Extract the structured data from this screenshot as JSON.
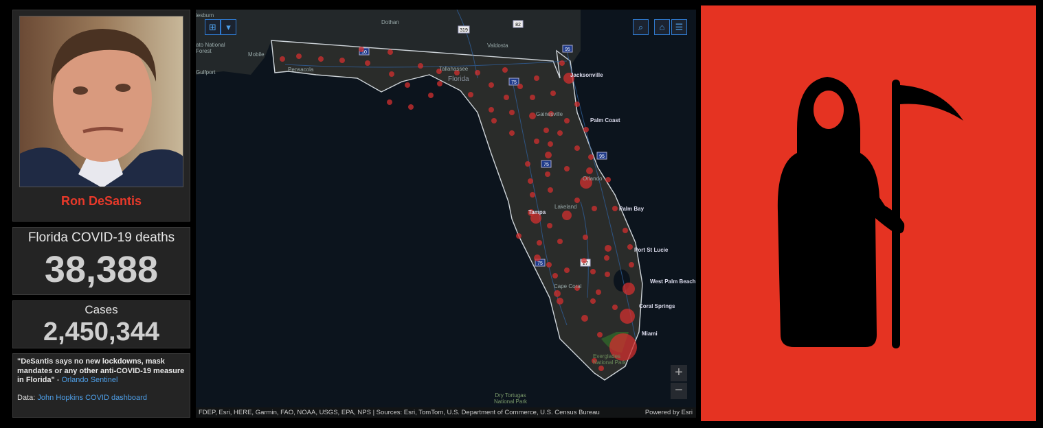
{
  "profile": {
    "name": "Ron DeSantis"
  },
  "deaths": {
    "label": "Florida COVID-19 deaths",
    "value": "38,388"
  },
  "cases": {
    "label": "Cases",
    "value": "2,450,344"
  },
  "info": {
    "quote": "\"DeSantis says no new lockdowns, mask mandates or any other anti-COVID-19 measure in Florida\"",
    "dash": " - ",
    "source": "Orlando Sentinel",
    "data_label": "Data: ",
    "data_link": "John Hopkins COVID dashboard"
  },
  "map": {
    "attribution": "FDEP, Esri, HERE, Garmin, FAO, NOAA, USGS, EPA, NPS | Sources: Esri, TomTom, U.S. Department of Commerce, U.S. Census Bureau",
    "powered_by": "Powered by Esri",
    "zoom_in": "+",
    "zoom_out": "−",
    "state_label": "Florida",
    "cities": [
      {
        "name": "Dothan",
        "bold": false
      },
      {
        "name": "Valdosta",
        "bold": false
      },
      {
        "name": "Mobile",
        "bold": false
      },
      {
        "name": "Pensacola",
        "bold": false
      },
      {
        "name": "Tallahassee",
        "bold": false
      },
      {
        "name": "Jacksonville",
        "bold": true
      },
      {
        "name": "Gainesville",
        "bold": false
      },
      {
        "name": "Palm Coast",
        "bold": true
      },
      {
        "name": "Orlando",
        "bold": false
      },
      {
        "name": "Lakeland",
        "bold": false
      },
      {
        "name": "Tampa",
        "bold": true
      },
      {
        "name": "Palm Bay",
        "bold": true
      },
      {
        "name": "Port St Lucie",
        "bold": true
      },
      {
        "name": "West Palm Beach",
        "bold": true
      },
      {
        "name": "Cape Coral",
        "bold": false
      },
      {
        "name": "Coral Springs",
        "bold": true
      },
      {
        "name": "Miami",
        "bold": true
      },
      {
        "name": "Everglades National Park",
        "bold": false
      },
      {
        "name": "Dry Tortugas National Park",
        "bold": false
      },
      {
        "name": "Gulfport",
        "bold": false
      },
      {
        "name": "iesburn",
        "bold": false
      },
      {
        "name": "ato National Forest",
        "bold": false
      }
    ],
    "highways": [
      "10",
      "75",
      "95",
      "319",
      "82",
      "27"
    ]
  },
  "colors": {
    "accent_red": "#e8392a",
    "link_blue": "#4e9fe8",
    "reaper_bg": "#e53322",
    "dot_red": "#d32f2f"
  }
}
